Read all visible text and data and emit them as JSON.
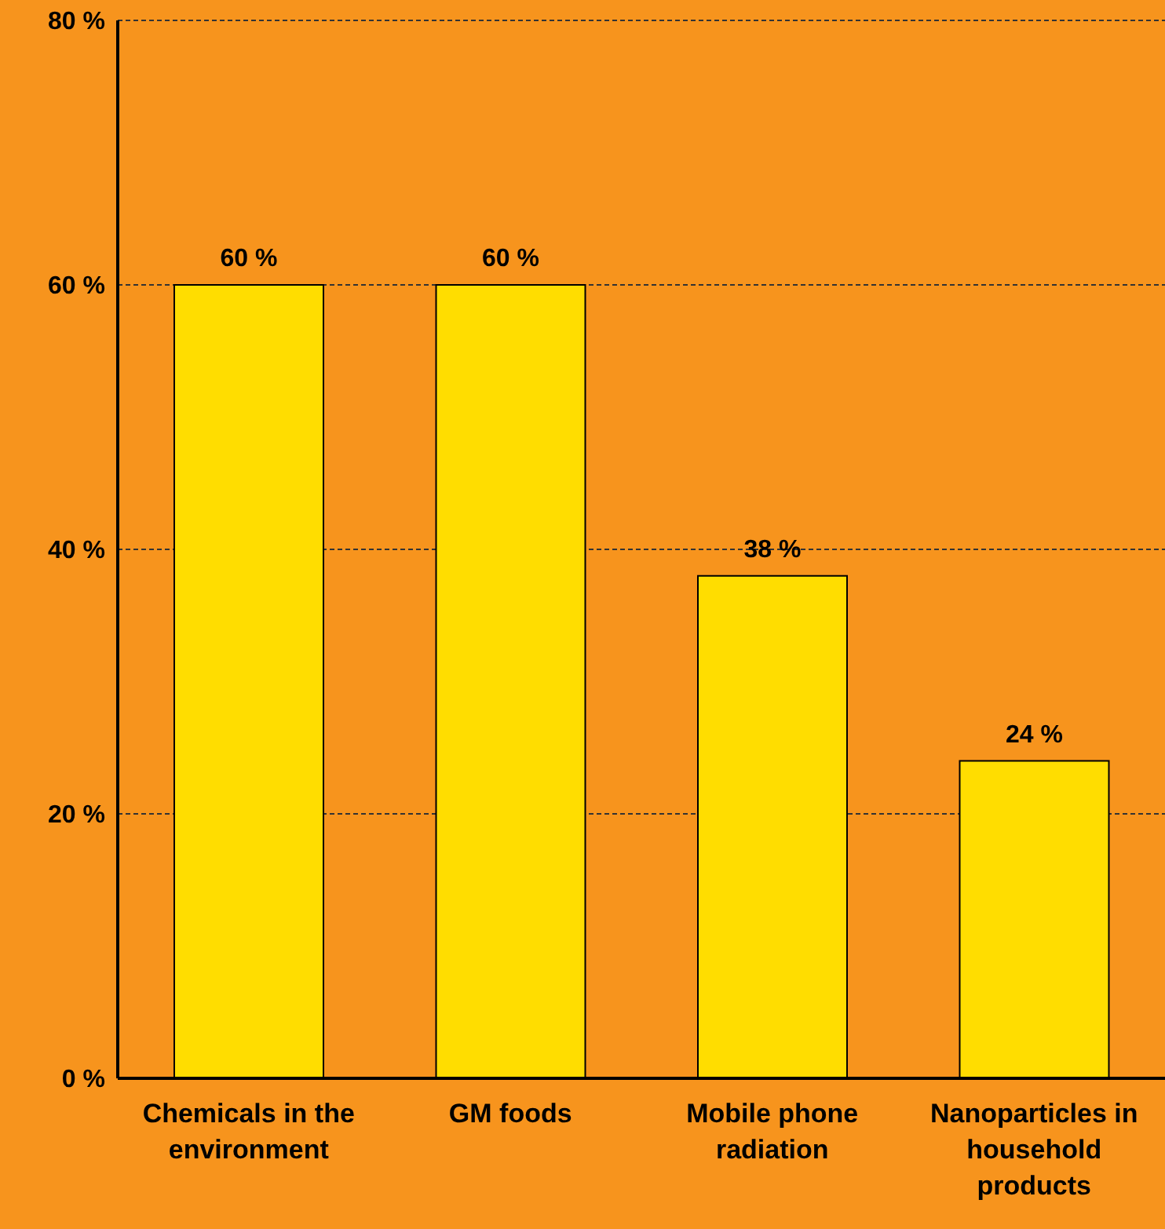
{
  "chart_data": {
    "type": "bar",
    "categories": [
      "Chemicals in the environment",
      "GM foods",
      "Mobile phone radiation",
      "Nanoparticles in household products"
    ],
    "values": [
      60,
      60,
      38,
      24
    ],
    "color": "#ffdd00",
    "value_labels": [
      "60 %",
      "60 %",
      "38 %",
      "24 %"
    ],
    "ylim": [
      0,
      80
    ],
    "yticks": [
      {
        "value": 0,
        "label": "0 %"
      },
      {
        "value": 20,
        "label": "20 %"
      },
      {
        "value": 40,
        "label": "40 %"
      },
      {
        "value": 60,
        "label": "60 %"
      },
      {
        "value": 80,
        "label": "80 %"
      }
    ],
    "grid": "y",
    "legend": false
  }
}
